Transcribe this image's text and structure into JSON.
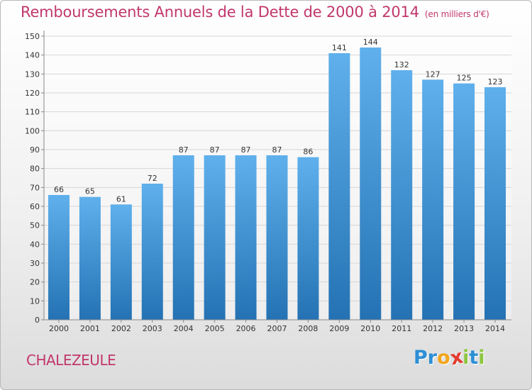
{
  "colors": {
    "title": "#c1376c",
    "bar_top": "#5fb0ec",
    "bar_bottom": "#2472b3",
    "grid": "#d6d6d6",
    "axis_text": "#333333"
  },
  "chart_data": {
    "type": "bar",
    "title": "Remboursements Annuels de la Dette de 2000 à 2014",
    "subtitle": "(en milliers d'€)",
    "xlabel": "",
    "ylabel": "",
    "ylim": [
      0,
      150
    ],
    "yticks": [
      0,
      10,
      20,
      30,
      40,
      50,
      60,
      70,
      80,
      90,
      100,
      110,
      120,
      130,
      140,
      150
    ],
    "grid": true,
    "categories": [
      "2000",
      "2001",
      "2002",
      "2003",
      "2004",
      "2005",
      "2006",
      "2007",
      "2008",
      "2009",
      "2010",
      "2011",
      "2012",
      "2013",
      "2014"
    ],
    "values": [
      66,
      65,
      61,
      72,
      87,
      87,
      87,
      87,
      86,
      141,
      144,
      132,
      127,
      125,
      123
    ]
  },
  "footer": {
    "commune": "CHALEZEULE",
    "logo_letters": [
      {
        "char": "P",
        "color": "#2d8fd6"
      },
      {
        "char": "r",
        "color": "#2d8fd6"
      },
      {
        "char": "o",
        "color": "#f2a51a"
      },
      {
        "char": "x",
        "color": "#e23b2e"
      },
      {
        "char": "i",
        "color": "#8cc63e"
      },
      {
        "char": "t",
        "color": "#2d8fd6"
      },
      {
        "char": "i",
        "color": "#8cc63e"
      }
    ]
  }
}
